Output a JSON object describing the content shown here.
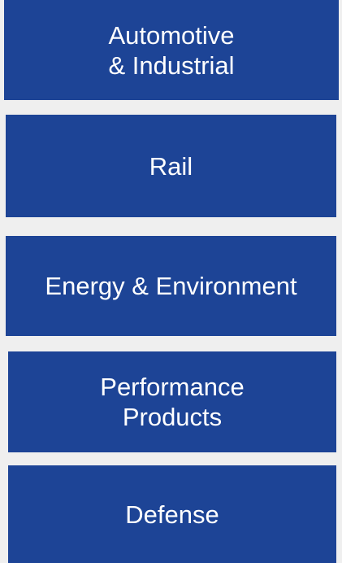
{
  "boxes": [
    {
      "lines": [
        "Automotive",
        "& Industrial"
      ]
    },
    {
      "lines": [
        "Rail"
      ]
    },
    {
      "lines": [
        "Energy & Environment"
      ]
    },
    {
      "lines": [
        "Performance",
        "Products"
      ]
    },
    {
      "lines": [
        "Defense"
      ]
    }
  ]
}
